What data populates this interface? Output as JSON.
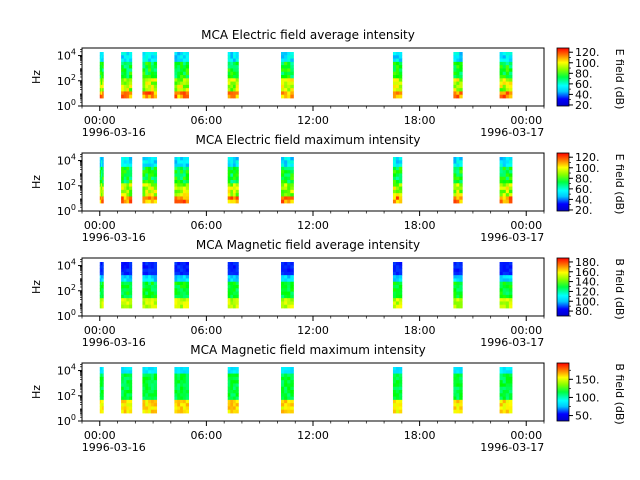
{
  "chart_data": [
    {
      "type": "heatmap",
      "title": "MCA  Electric field average intensity",
      "ylabel": "Hz",
      "yscale": "log",
      "yticks": [
        "10^0",
        "10^2",
        "10^4"
      ],
      "xticks": [
        "00:00",
        "06:00",
        "12:00",
        "18:00",
        "00:00"
      ],
      "xdates": [
        "1996-03-16",
        "1996-03-17"
      ],
      "colorbar": {
        "label": "E field (dB)",
        "ticks": [
          "20.",
          "40.",
          "60.",
          "80.",
          "100.",
          "120."
        ],
        "range": [
          18,
          128
        ]
      },
      "palette": "rainbow",
      "data_intervals_hours": [
        [
          0.0,
          0.2
        ],
        [
          1.2,
          1.8
        ],
        [
          2.4,
          3.2
        ],
        [
          4.2,
          5.0
        ],
        [
          7.2,
          7.8
        ],
        [
          10.2,
          10.9
        ],
        [
          16.5,
          17.0
        ],
        [
          19.9,
          20.4
        ],
        [
          22.5,
          23.2
        ]
      ]
    },
    {
      "type": "heatmap",
      "title": "MCA  Electric field maximum intensity",
      "ylabel": "Hz",
      "yscale": "log",
      "yticks": [
        "10^0",
        "10^2",
        "10^4"
      ],
      "xticks": [
        "00:00",
        "06:00",
        "12:00",
        "18:00",
        "00:00"
      ],
      "xdates": [
        "1996-03-16",
        "1996-03-17"
      ],
      "colorbar": {
        "label": "E field (dB)",
        "ticks": [
          "20.",
          "40.",
          "60.",
          "80.",
          "100.",
          "120."
        ],
        "range": [
          18,
          128
        ]
      },
      "palette": "rainbow",
      "data_intervals_hours": [
        [
          0.0,
          0.2
        ],
        [
          1.2,
          1.8
        ],
        [
          2.4,
          3.2
        ],
        [
          4.2,
          5.0
        ],
        [
          7.2,
          7.8
        ],
        [
          10.2,
          10.9
        ],
        [
          16.5,
          17.0
        ],
        [
          19.9,
          20.4
        ],
        [
          22.5,
          23.2
        ]
      ]
    },
    {
      "type": "heatmap",
      "title": "MCA  Magnetic field average intensity",
      "ylabel": "Hz",
      "yscale": "log",
      "yticks": [
        "10^0",
        "10^2",
        "10^4"
      ],
      "xticks": [
        "00:00",
        "06:00",
        "12:00",
        "18:00",
        "00:00"
      ],
      "xdates": [
        "1996-03-16",
        "1996-03-17"
      ],
      "colorbar": {
        "label": "B field (dB)",
        "ticks": [
          "80.",
          "100.",
          "120.",
          "140.",
          "160.",
          "180."
        ],
        "range": [
          70,
          188
        ]
      },
      "palette": "rainbow",
      "data_intervals_hours": [
        [
          0.0,
          0.2
        ],
        [
          1.2,
          1.8
        ],
        [
          2.4,
          3.2
        ],
        [
          4.2,
          5.0
        ],
        [
          7.2,
          7.8
        ],
        [
          10.2,
          10.9
        ],
        [
          16.5,
          17.0
        ],
        [
          19.9,
          20.4
        ],
        [
          22.5,
          23.2
        ]
      ]
    },
    {
      "type": "heatmap",
      "title": "MCA  Magnetic field maximum intensity",
      "ylabel": "Hz",
      "yscale": "log",
      "yticks": [
        "10^0",
        "10^2",
        "10^4"
      ],
      "xticks": [
        "00:00",
        "06:00",
        "12:00",
        "18:00",
        "00:00"
      ],
      "xdates": [
        "1996-03-16",
        "1996-03-17"
      ],
      "colorbar": {
        "label": "B field (dB)",
        "ticks": [
          "50.",
          "100.",
          "150."
        ],
        "range": [
          35,
          195
        ]
      },
      "palette": "rainbow",
      "data_intervals_hours": [
        [
          0.0,
          0.2
        ],
        [
          1.2,
          1.8
        ],
        [
          2.4,
          3.2
        ],
        [
          4.2,
          5.0
        ],
        [
          7.2,
          7.8
        ],
        [
          10.2,
          10.9
        ],
        [
          16.5,
          17.0
        ],
        [
          19.9,
          20.4
        ],
        [
          22.5,
          23.2
        ]
      ]
    }
  ]
}
